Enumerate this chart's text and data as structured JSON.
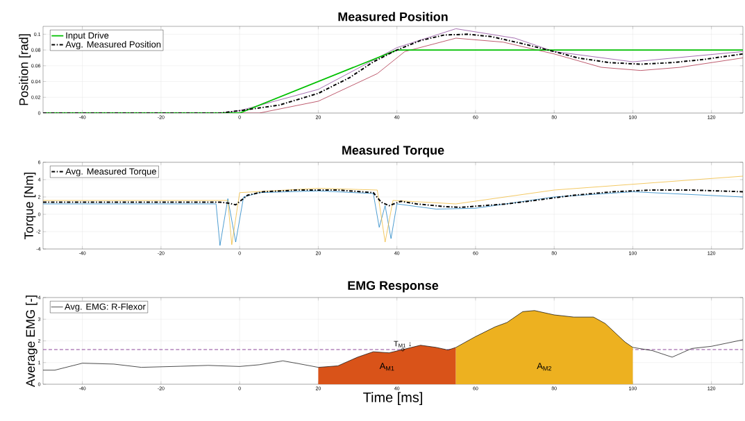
{
  "chart_data": [
    {
      "type": "line",
      "title": "Measured Position",
      "ylabel": "Position [rad]",
      "xlim": [
        -50,
        128
      ],
      "ylim": [
        0,
        0.11
      ],
      "xticks": [
        -40,
        -20,
        0,
        20,
        40,
        60,
        80,
        100,
        120
      ],
      "yticks": [
        0,
        0.02,
        0.04,
        0.06,
        0.08,
        0.1
      ],
      "grid": true,
      "legend": "top left",
      "series": [
        {
          "color": "#a2142f",
          "x": [
            -50,
            -2,
            5,
            20,
            35,
            42,
            55,
            67,
            80,
            92,
            102,
            112,
            128
          ],
          "values": [
            0,
            0,
            0,
            0.015,
            0.05,
            0.078,
            0.095,
            0.09,
            0.075,
            0.058,
            0.054,
            0.058,
            0.07
          ]
        },
        {
          "color": "#7e2f8e",
          "x": [
            -50,
            -5,
            0,
            20,
            40,
            55,
            70,
            80,
            100,
            128
          ],
          "values": [
            0,
            0,
            0.003,
            0.03,
            0.083,
            0.107,
            0.095,
            0.078,
            0.065,
            0.078
          ]
        },
        {
          "name": "Input Drive",
          "color": "#00c000",
          "x": [
            -50,
            0,
            40,
            128
          ],
          "values": [
            0,
            0,
            0.08,
            0.08
          ]
        },
        {
          "name": "Avg. Measured Position",
          "color": "#000000",
          "line_style": "dashed",
          "x": [
            -50,
            -5,
            0,
            10,
            20,
            28,
            34,
            40,
            46,
            52,
            58,
            64,
            72,
            80,
            86,
            94,
            102,
            110,
            118,
            128
          ],
          "values": [
            0,
            0,
            0.003,
            0.01,
            0.025,
            0.045,
            0.065,
            0.08,
            0.092,
            0.099,
            0.1,
            0.097,
            0.088,
            0.078,
            0.07,
            0.064,
            0.062,
            0.064,
            0.068,
            0.075
          ]
        }
      ]
    },
    {
      "type": "line",
      "title": "Measured Torque",
      "ylabel": "Torque [Nm]",
      "xlim": [
        -50,
        128
      ],
      "ylim": [
        -4,
        6
      ],
      "xticks": [
        -40,
        -20,
        0,
        20,
        40,
        60,
        80,
        100,
        120
      ],
      "yticks": [
        -4,
        -2,
        0,
        2,
        4,
        6
      ],
      "grid": true,
      "legend": "top left",
      "series": [
        {
          "color": "#0072bd",
          "x": [
            -50,
            -6,
            -5,
            -3,
            -1,
            1,
            5,
            20,
            34,
            35.5,
            37,
            38.5,
            40,
            50,
            60,
            80,
            100,
            128
          ],
          "values": [
            1.2,
            1.2,
            -3.6,
            1.8,
            -3.2,
            2.0,
            2.5,
            2.7,
            2.4,
            -1.5,
            1.0,
            -2.8,
            1.2,
            0.6,
            0.7,
            2.0,
            2.6,
            2.0
          ]
        },
        {
          "color": "#edb120",
          "x": [
            -50,
            -3,
            -2,
            0,
            20,
            35,
            37,
            39,
            55,
            80,
            110,
            128
          ],
          "values": [
            1.6,
            1.6,
            -3.5,
            2.5,
            3.0,
            2.8,
            -3.2,
            1.6,
            1.2,
            2.8,
            3.8,
            4.4
          ]
        },
        {
          "name": "Avg. Measured Torque",
          "color": "#000000",
          "line_style": "dashed",
          "x": [
            -50,
            -5,
            -3,
            -1,
            2,
            6,
            15,
            25,
            34,
            36,
            38,
            41,
            45,
            52,
            56,
            62,
            68,
            75,
            85,
            95,
            105,
            115,
            128
          ],
          "values": [
            1.4,
            1.4,
            1.3,
            1.1,
            2.2,
            2.6,
            2.8,
            2.8,
            2.5,
            1.4,
            1.0,
            1.5,
            1.2,
            0.9,
            0.8,
            1.0,
            1.2,
            1.6,
            2.2,
            2.6,
            2.8,
            2.8,
            2.6
          ]
        }
      ]
    },
    {
      "type": "line",
      "title": "EMG Response",
      "xlabel": "Time [ms]",
      "ylabel": "Average EMG [-]",
      "xlim": [
        -50,
        128
      ],
      "ylim": [
        0,
        4
      ],
      "xticks": [
        -40,
        -20,
        0,
        20,
        40,
        60,
        80,
        100,
        120
      ],
      "yticks": [
        0,
        1,
        2,
        3,
        4
      ],
      "grid": true,
      "legend": "top left",
      "ref_lines": [
        {
          "axis": "y",
          "value": 1.6,
          "color": "#7e2f8e",
          "line_style": "dashed"
        }
      ],
      "annotations": [
        "A$_{M1}$",
        "A$_{M2}$",
        {
          "text": "T$_{M1}$ ↓",
          "x": 41.5,
          "y": 1.6
        }
      ],
      "series": [
        {
          "type": "area",
          "color": "#d95319",
          "x": [
            20,
            25,
            30,
            34,
            38,
            41.5,
            46,
            50,
            53,
            55
          ],
          "values": [
            0.78,
            0.85,
            1.25,
            1.5,
            1.45,
            1.6,
            1.8,
            1.7,
            1.58,
            1.7
          ]
        },
        {
          "type": "area",
          "color": "#edb120",
          "x": [
            55,
            60,
            65,
            68,
            72,
            75,
            80,
            85,
            90,
            93,
            98,
            100
          ],
          "values": [
            1.7,
            2.2,
            2.65,
            2.85,
            3.35,
            3.4,
            3.2,
            3.1,
            3.1,
            2.8,
            1.95,
            1.7
          ]
        },
        {
          "name": "Avg. EMG: R-Flexor",
          "color": "#000000",
          "x": [
            -50,
            -47,
            -40,
            -32,
            -25,
            -15,
            -8,
            0,
            5,
            11,
            15,
            20,
            25,
            30,
            34,
            38,
            41.5,
            46,
            50,
            53,
            55,
            60,
            65,
            68,
            72,
            75,
            80,
            85,
            90,
            93,
            98,
            100,
            105,
            110,
            115,
            120,
            128
          ],
          "values": [
            0.65,
            0.65,
            0.97,
            0.93,
            0.78,
            0.83,
            0.87,
            0.82,
            0.9,
            1.08,
            0.95,
            0.78,
            0.85,
            1.25,
            1.5,
            1.45,
            1.6,
            1.8,
            1.7,
            1.58,
            1.7,
            2.2,
            2.65,
            2.85,
            3.35,
            3.4,
            3.2,
            3.1,
            3.1,
            2.8,
            1.95,
            1.7,
            1.55,
            1.25,
            1.65,
            1.75,
            2.05
          ]
        },
        {
          "type": "scatter",
          "color": "#000000",
          "marker": "circle",
          "x": [
            41.5
          ],
          "values": [
            1.6
          ]
        }
      ]
    }
  ]
}
